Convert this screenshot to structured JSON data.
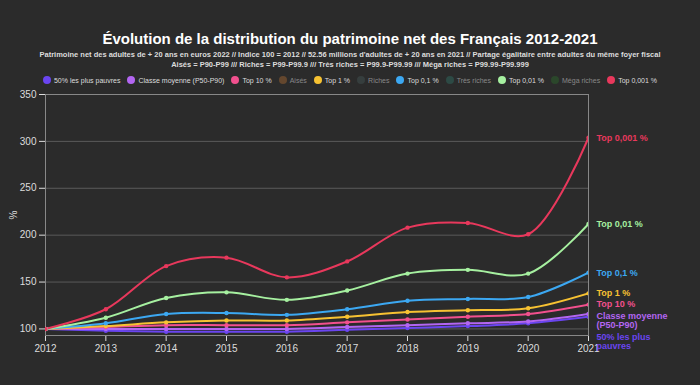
{
  "chart_data": {
    "type": "line",
    "title": "Évolution de la distribution du patrimoine net des Français 2012-2021",
    "subtitle": [
      "Patrimoine net des adultes de + 20 ans en euros 2022 // Indice 100 = 2012 // 52.56 millions d'adultes de + 20 ans en 2021 // Partage égalitaire entre adultes du même foyer fiscal",
      "Aisés = P90-P99 /// Riches = P99-P99.9 /// Très riches = P99.9-P99.99 /// Méga riches = P99.99-P99.999"
    ],
    "y_label": "%",
    "x": [
      2012,
      2013,
      2014,
      2015,
      2016,
      2017,
      2018,
      2019,
      2020,
      2021
    ],
    "xlim": [
      2012,
      2021
    ],
    "xticks": [
      2012,
      2013,
      2014,
      2015,
      2016,
      2017,
      2018,
      2019,
      2020,
      2021
    ],
    "ylim": [
      93,
      350
    ],
    "yticks": [
      100,
      150,
      200,
      250,
      300,
      350
    ],
    "grid": true,
    "marker": "circle",
    "series": [
      {
        "name": "50% les plus pauvres",
        "color": "#6a45f0",
        "values": [
          100,
          98,
          97,
          97,
          97,
          99,
          101,
          103,
          106,
          113
        ]
      },
      {
        "name": "Classe moyenne (P50-P90)",
        "color": "#b366f2",
        "values": [
          100,
          100,
          100,
          100,
          100,
          102,
          104,
          106,
          108,
          116
        ]
      },
      {
        "name": "Top 10 %",
        "color": "#f2508e",
        "values": [
          100,
          102,
          104,
          104,
          104,
          107,
          110,
          113,
          116,
          126
        ]
      },
      {
        "name": "Aisés",
        "color": "#8a5a30",
        "values": [
          null,
          null,
          null,
          null,
          null,
          null,
          null,
          null,
          null,
          null
        ]
      },
      {
        "name": "Top 1 %",
        "color": "#f7c232",
        "values": [
          100,
          103,
          107,
          109,
          109,
          113,
          118,
          120,
          122,
          138
        ]
      },
      {
        "name": "Riches",
        "color": "#3e4b4b",
        "values": [
          null,
          null,
          null,
          null,
          null,
          null,
          null,
          null,
          null,
          null
        ]
      },
      {
        "name": "Top 0,1 %",
        "color": "#3ca8f2",
        "values": [
          100,
          106,
          116,
          117,
          115,
          121,
          130,
          132,
          134,
          160
        ]
      },
      {
        "name": "Très riches",
        "color": "#2f5f56",
        "values": [
          null,
          null,
          null,
          null,
          null,
          null,
          null,
          null,
          null,
          null
        ]
      },
      {
        "name": "Top 0,01 %",
        "color": "#a6f0a0",
        "values": [
          100,
          112,
          133,
          139,
          131,
          141,
          159,
          163,
          159,
          212
        ]
      },
      {
        "name": "Méga riches",
        "color": "#2c5a2c",
        "values": [
          null,
          null,
          null,
          null,
          null,
          null,
          null,
          null,
          null,
          null
        ]
      },
      {
        "name": "Top 0,001 %",
        "color": "#e8385c",
        "values": [
          100,
          121,
          167,
          176,
          155,
          172,
          208,
          213,
          201,
          304
        ]
      }
    ]
  }
}
